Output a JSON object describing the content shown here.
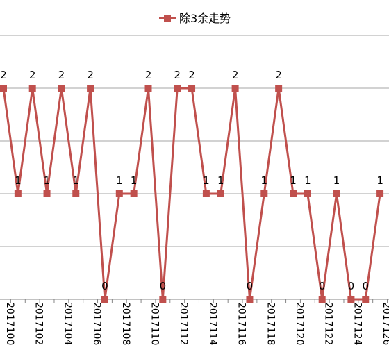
{
  "chart_data": {
    "type": "line",
    "series": [
      {
        "name": "除3余走势",
        "color": "#c0504d",
        "values": [
          2,
          1,
          2,
          1,
          2,
          1,
          2,
          0,
          1,
          1,
          2,
          0,
          2,
          2,
          1,
          1,
          2,
          0,
          1,
          2,
          1,
          1,
          0,
          1,
          0,
          0,
          1
        ]
      }
    ],
    "categories": [
      "",
      "",
      "2017102",
      "",
      "2017104",
      "",
      "2017106",
      "",
      "2017108",
      "",
      "2017110",
      "",
      "2017112",
      "",
      "2017114",
      "",
      "2017116",
      "",
      "2017118",
      "",
      "2017120",
      "",
      "2017122",
      "",
      "2017124",
      "",
      "2017126"
    ],
    "tick_labels": [
      {
        "text": "2017100",
        "category": 0
      },
      {
        "text": "2017102",
        "category": 2
      },
      {
        "text": "2017104",
        "category": 4
      },
      {
        "text": "2017106",
        "category": 6
      },
      {
        "text": "2017108",
        "category": 8
      },
      {
        "text": "2017110",
        "category": 10
      },
      {
        "text": "2017112",
        "category": 12
      },
      {
        "text": "2017114",
        "category": 14
      },
      {
        "text": "2017116",
        "category": 16
      },
      {
        "text": "2017118",
        "category": 18
      },
      {
        "text": "2017120",
        "category": 20
      },
      {
        "text": "2017122",
        "category": 22
      },
      {
        "text": "2017124",
        "category": 24
      },
      {
        "text": "2017126",
        "category": 26
      }
    ],
    "ylim": [
      0,
      2.5
    ],
    "grid": true,
    "legend": "top"
  }
}
